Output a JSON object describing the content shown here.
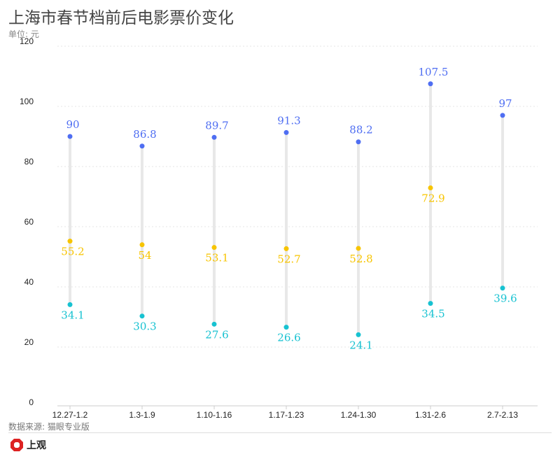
{
  "header": {
    "title": "上海市春节档前后电影票价变化",
    "unit": "单位: 元"
  },
  "footer": {
    "source": "数据来源: 猫眼专业版",
    "logo_text": "上观"
  },
  "colors": {
    "high": "#4f6ef2",
    "mid": "#f7c400",
    "low": "#17c2d1",
    "range": "#e8e8e8"
  },
  "chart_data": {
    "type": "scatter",
    "subtype": "dot-range",
    "title": "上海市春节档前后电影票价变化",
    "ylabel": "单位: 元",
    "ylim": [
      0,
      120
    ],
    "yticks": [
      0,
      20,
      40,
      60,
      80,
      100,
      120
    ],
    "grid": true,
    "categories": [
      "12.27-1.2",
      "1.3-1.9",
      "1.10-1.16",
      "1.17-1.23",
      "1.24-1.30",
      "1.31-2.6",
      "2.7-2.13"
    ],
    "series": [
      {
        "name": "high",
        "values": [
          90,
          86.8,
          89.7,
          91.3,
          88.2,
          107.5,
          97
        ]
      },
      {
        "name": "mid",
        "values": [
          55.2,
          54,
          53.1,
          52.7,
          52.8,
          72.9,
          null
        ]
      },
      {
        "name": "low",
        "values": [
          34.1,
          30.3,
          27.6,
          26.6,
          24.1,
          34.5,
          39.6
        ]
      }
    ]
  }
}
